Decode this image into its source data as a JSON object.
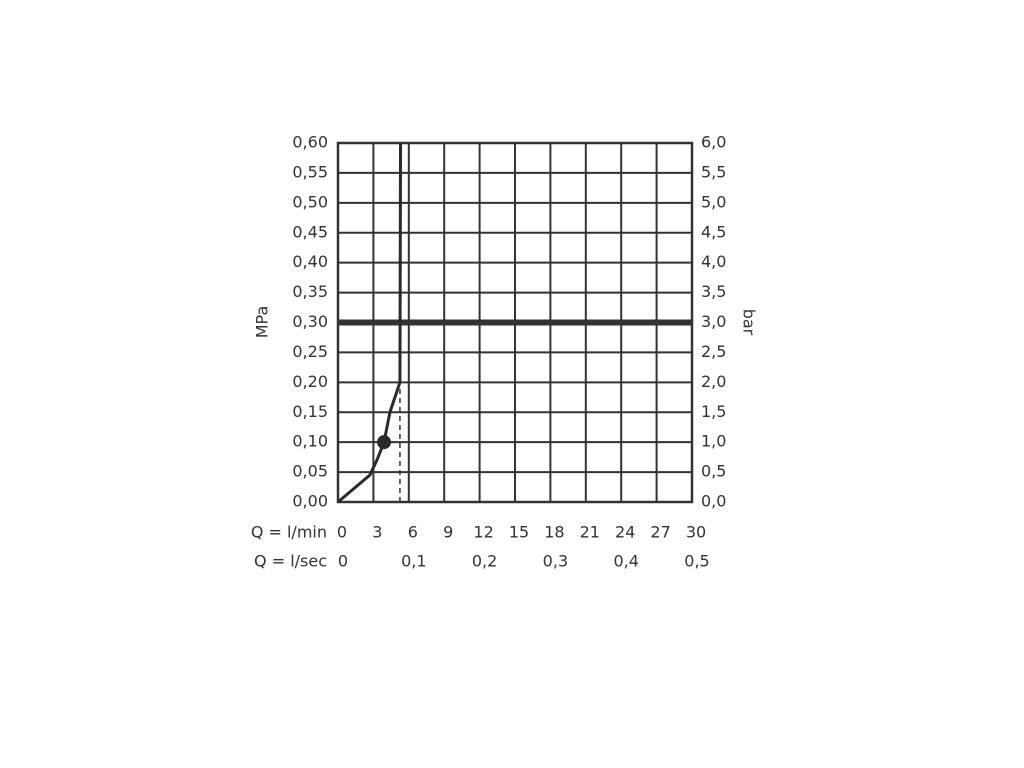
{
  "chart_data": {
    "type": "line",
    "ylabel": "MPa",
    "y2label": "bar",
    "xlabel": "Q = l/min",
    "x2label": "Q = l/sec",
    "xlim": [
      0,
      30
    ],
    "xticks": [
      0,
      3,
      6,
      9,
      12,
      15,
      18,
      21,
      24,
      27,
      30
    ],
    "x2lim": [
      0,
      0.5
    ],
    "x2ticks": [
      0,
      {
        "value": 0.1,
        "label": "0,1"
      },
      {
        "value": 0.2,
        "label": "0,2"
      },
      {
        "value": 0.3,
        "label": "0,3"
      },
      {
        "value": 0.4,
        "label": "0,4"
      },
      {
        "value": 0.5,
        "label": "0,5"
      }
    ],
    "ylim": [
      0,
      0.6
    ],
    "yticks": [
      {
        "value": 0,
        "label": "0,00"
      },
      {
        "value": 0.05,
        "label": "0,05"
      },
      {
        "value": 0.1,
        "label": "0,10"
      },
      {
        "value": 0.15,
        "label": "0,15"
      },
      {
        "value": 0.2,
        "label": "0,20"
      },
      {
        "value": 0.25,
        "label": "0,25"
      },
      {
        "value": 0.3,
        "label": "0,30"
      },
      {
        "value": 0.35,
        "label": "0,35"
      },
      {
        "value": 0.4,
        "label": "0,40"
      },
      {
        "value": 0.45,
        "label": "0,45"
      },
      {
        "value": 0.5,
        "label": "0,50"
      },
      {
        "value": 0.55,
        "label": "0,55"
      },
      {
        "value": 0.6,
        "label": "0,60"
      }
    ],
    "y2lim": [
      0,
      6
    ],
    "y2ticks": [
      {
        "value": 0,
        "label": "0,0"
      },
      {
        "value": 0.5,
        "label": "0,5"
      },
      {
        "value": 1,
        "label": "1,0"
      },
      {
        "value": 1.5,
        "label": "1,5"
      },
      {
        "value": 2,
        "label": "2,0"
      },
      {
        "value": 2.5,
        "label": "2,5"
      },
      {
        "value": 3,
        "label": "3,0"
      },
      {
        "value": 3.5,
        "label": "3,5"
      },
      {
        "value": 4,
        "label": "4,0"
      },
      {
        "value": 4.5,
        "label": "4,5"
      },
      {
        "value": 5,
        "label": "5,0"
      },
      {
        "value": 5.5,
        "label": "5,5"
      },
      {
        "value": 6,
        "label": "6,0"
      }
    ],
    "grid": true,
    "series": [
      {
        "color": "#2a2a2a",
        "x": [
          0,
          2.7,
          3.3,
          3.9,
          4.4,
          5.25,
          5.3
        ],
        "values": [
          0,
          0.045,
          0.07,
          0.1,
          0.15,
          0.2,
          0.6
        ]
      }
    ],
    "markers": [
      {
        "x": 3.9,
        "y": 0.1
      }
    ],
    "hline": 0.3,
    "dashed_line": {
      "x": [
        5.25,
        5.25
      ],
      "y": [
        0,
        0.19
      ]
    }
  }
}
